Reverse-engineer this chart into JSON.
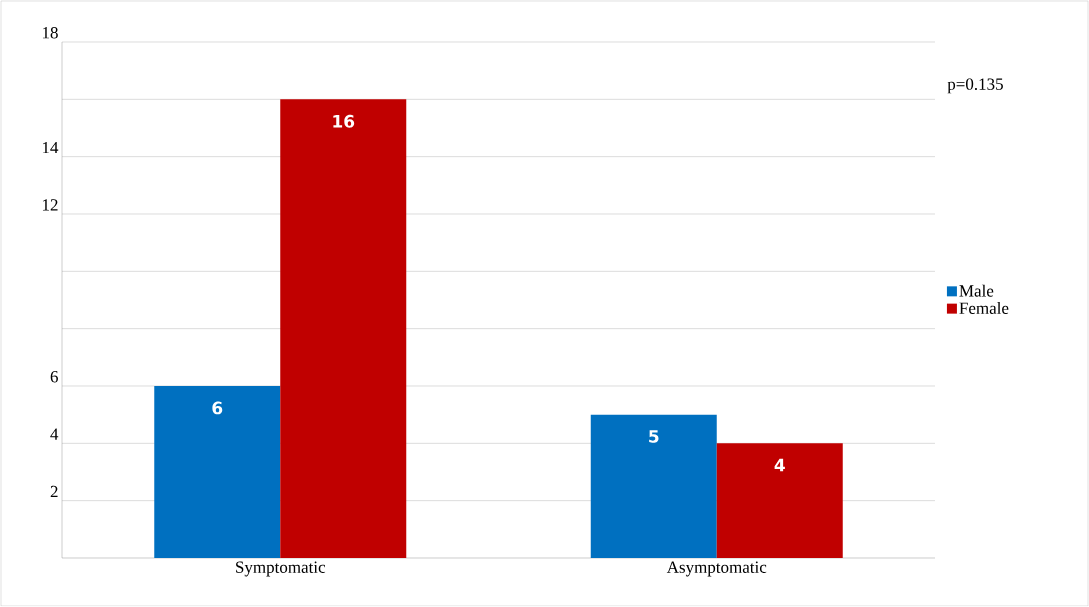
{
  "chart_data": {
    "type": "bar",
    "categories": [
      "Symptomatic",
      "Asymptomatic"
    ],
    "series": [
      {
        "name": "Male",
        "color": "#0070c0",
        "values": [
          6,
          5
        ]
      },
      {
        "name": "Female",
        "color": "#c00000",
        "values": [
          16,
          4
        ]
      }
    ],
    "ylim": [
      0,
      18
    ],
    "yticks": [
      2,
      4,
      6,
      {
        "value": 8,
        "label": null
      },
      {
        "value": 10,
        "label": null
      },
      12,
      14,
      {
        "value": 16,
        "label": null
      },
      18
    ],
    "grid": "y",
    "legend": "right",
    "data_labels": true,
    "annotations": [
      "p=0.135"
    ]
  }
}
